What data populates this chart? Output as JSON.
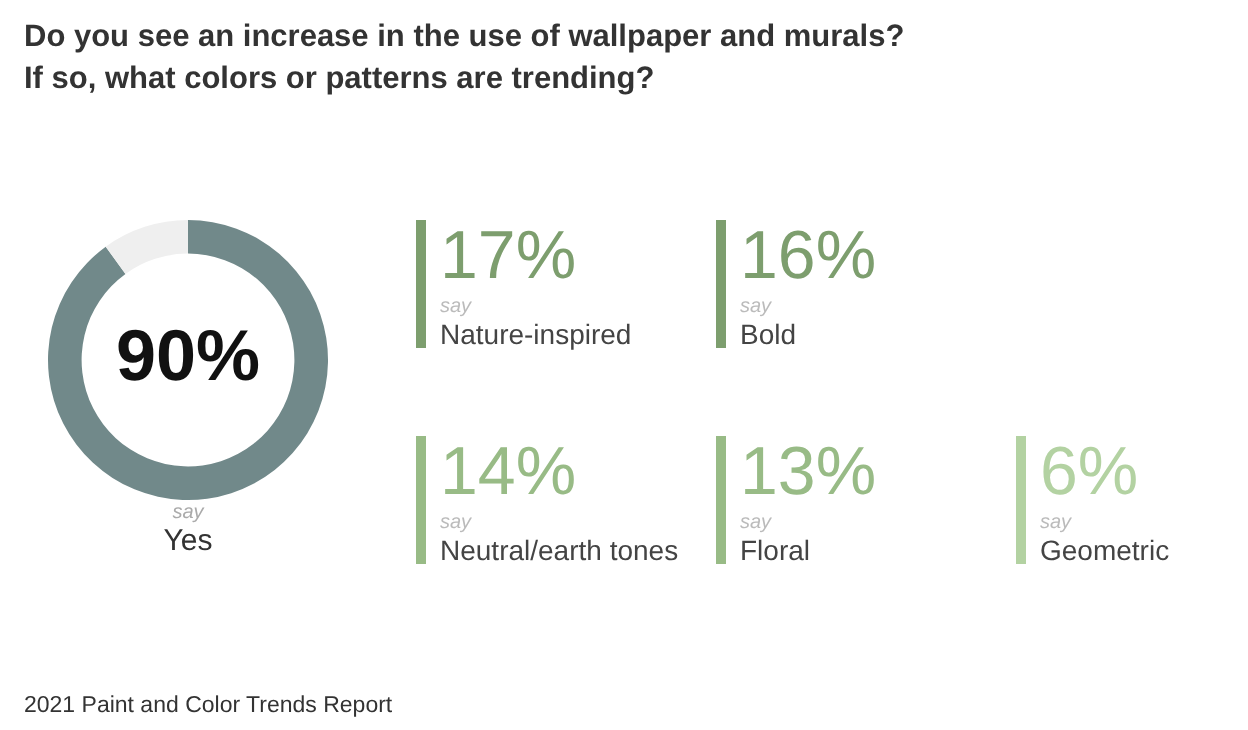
{
  "chart_data": [
    {
      "type": "donut",
      "title": "Do you see an increase in the use of wallpaper and murals?\nIf so, what colors or patterns are trending?",
      "categories": [
        "Yes",
        null
      ],
      "values": [
        90,
        10
      ],
      "colors": [
        "#71898a",
        "#efefef"
      ],
      "value_labels": [
        "90%",
        null
      ],
      "annotations": [
        "say",
        "2021 Paint and Color Trends Report"
      ]
    },
    {
      "type": "other",
      "categories": [
        "Nature-inspired",
        "Bold",
        "Neutral/earth tones",
        "Floral",
        "Geometric"
      ],
      "values": [
        17,
        16,
        14,
        13,
        6
      ],
      "value_labels": [
        "17%",
        "16%",
        "14%",
        "13%",
        "6%"
      ],
      "colors": [
        "#7d9e6e",
        "#7d9e6e",
        "#98bb86",
        "#98bb86",
        "#b3d2a2"
      ],
      "annotations": [
        "say"
      ]
    }
  ]
}
